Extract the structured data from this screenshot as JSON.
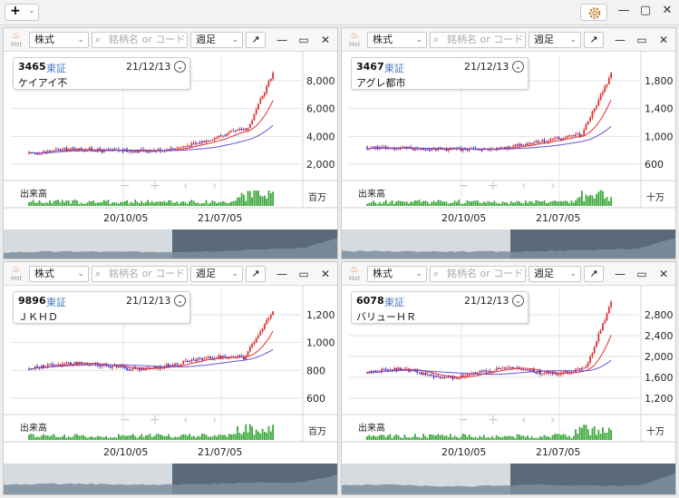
{
  "toolbar": {
    "add_label": "+",
    "add_caret": "⌄",
    "gear": "✲",
    "min": "—",
    "max": "▢",
    "close": "✕"
  },
  "panels": [
    {
      "hot_label": "Hot",
      "market_type": "株式",
      "search_placeholder": "銘柄名 or コード",
      "period": "週足",
      "code": "3465",
      "market": "東証",
      "date": "21/12/13",
      "name": "ケイアイ不",
      "volume_label": "出来高",
      "volume_unit": "百万",
      "date_labels": [
        "20/10/05",
        "21/07/05"
      ],
      "y_ticks": [
        "8,000",
        "6,000",
        "4,000",
        "2,000"
      ]
    },
    {
      "hot_label": "Hot",
      "market_type": "株式",
      "search_placeholder": "銘柄名 or コード",
      "period": "週足",
      "code": "3467",
      "market": "東証",
      "date": "21/12/13",
      "name": "アグレ都市",
      "volume_label": "出来高",
      "volume_unit": "十万",
      "date_labels": [
        "20/10/05",
        "21/07/05"
      ],
      "y_ticks": [
        "1,800",
        "1,400",
        "1,000",
        "600"
      ]
    },
    {
      "hot_label": "Hot",
      "market_type": "株式",
      "search_placeholder": "銘柄名 or コード",
      "period": "週足",
      "code": "9896",
      "market": "東証",
      "date": "21/12/13",
      "name": "ＪＫＨＤ",
      "volume_label": "出来高",
      "volume_unit": "百万",
      "date_labels": [
        "20/10/05",
        "21/07/05"
      ],
      "y_ticks": [
        "1,200",
        "1,000",
        "800",
        "600"
      ]
    },
    {
      "hot_label": "Hot",
      "market_type": "株式",
      "search_placeholder": "銘柄名 or コード",
      "period": "週足",
      "code": "6078",
      "market": "東証",
      "date": "21/12/13",
      "name": "バリューＨＲ",
      "volume_label": "出来高",
      "volume_unit": "十万",
      "date_labels": [
        "20/10/05",
        "21/07/05"
      ],
      "y_ticks": [
        "2,800",
        "2,400",
        "2,000",
        "1,600",
        "1,200"
      ]
    }
  ],
  "nav_glyphs": {
    "minus": "−",
    "plus": "+",
    "prev": "‹",
    "next": "›"
  },
  "panel_ctl": {
    "expand": "↗",
    "min": "—",
    "max": "▭",
    "close": "✕"
  },
  "colors": {
    "up": "#e03030",
    "down": "#2a2ad0",
    "ma_short": "#e03030",
    "ma_long": "#6a4fd0",
    "volume": "#3aa83a",
    "overview": "#7d8d9c"
  }
}
